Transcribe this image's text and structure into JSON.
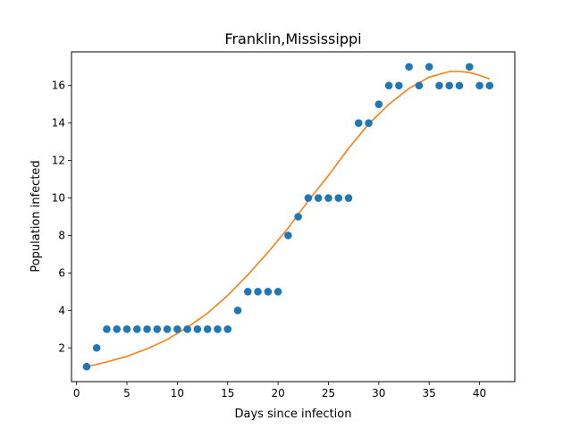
{
  "chart_data": {
    "type": "scatter",
    "title": "Franklin,Mississippi",
    "xlabel": "Days since infection",
    "ylabel": "Population infected",
    "xlim": [
      -0.5,
      43.5
    ],
    "ylim": [
      0.2,
      17.8
    ],
    "xticks": [
      0,
      5,
      10,
      15,
      20,
      25,
      30,
      35,
      40
    ],
    "yticks": [
      2,
      4,
      6,
      8,
      10,
      12,
      14,
      16
    ],
    "grid": false,
    "colors": {
      "points": "#1f77b4",
      "fit": "#ff7f0e"
    },
    "series": [
      {
        "type": "scatter",
        "x": [
          1,
          2,
          3,
          4,
          5,
          6,
          7,
          8,
          9,
          10,
          11,
          12,
          13,
          14,
          15,
          16,
          17,
          18,
          19,
          20,
          21,
          22,
          23,
          24,
          25,
          26,
          27,
          28,
          29,
          30,
          31,
          32,
          33,
          34,
          35,
          36,
          37,
          38,
          39,
          40,
          41
        ],
        "y": [
          1,
          2,
          3,
          3,
          3,
          3,
          3,
          3,
          3,
          3,
          3,
          3,
          3,
          3,
          3,
          4,
          5,
          5,
          5,
          5,
          8,
          9,
          10,
          10,
          10,
          10,
          10,
          14,
          14,
          15,
          16,
          16,
          17,
          16,
          17,
          16,
          16,
          16,
          17,
          16,
          16
        ]
      },
      {
        "type": "line",
        "x": [
          1,
          3,
          5,
          7,
          9,
          11,
          13,
          15,
          17,
          19,
          21,
          23,
          25,
          27,
          29,
          31,
          33,
          35,
          37,
          38,
          39,
          40,
          41
        ],
        "y": [
          1.0,
          1.25,
          1.55,
          1.95,
          2.45,
          3.1,
          3.85,
          4.8,
          5.9,
          7.1,
          8.4,
          9.85,
          11.2,
          12.65,
          13.95,
          15.0,
          15.85,
          16.45,
          16.75,
          16.75,
          16.7,
          16.55,
          16.35
        ]
      }
    ]
  }
}
